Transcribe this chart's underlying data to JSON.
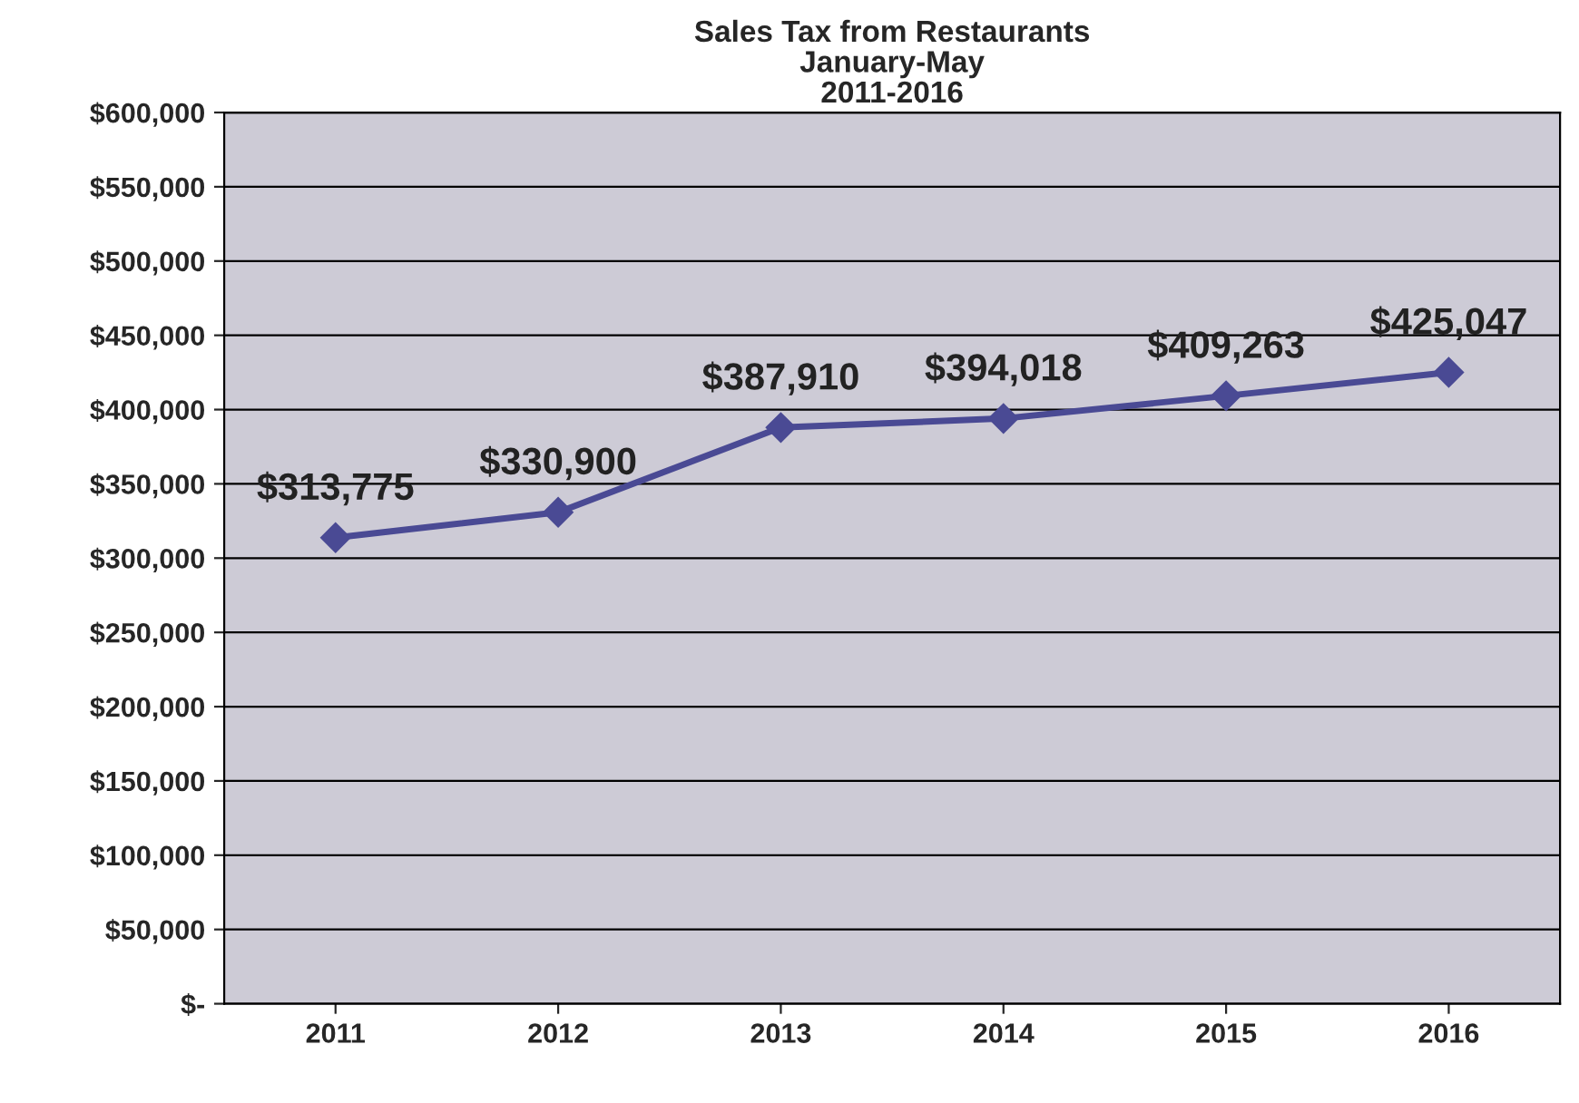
{
  "chart_data": {
    "type": "line",
    "title": "Sales Tax from Restaurants\nJanuary-May\n2011-2016",
    "categories": [
      "2011",
      "2012",
      "2013",
      "2014",
      "2015",
      "2016"
    ],
    "series": [
      {
        "color": "#4a4a94",
        "values": [
          313775,
          330900,
          387910,
          394018,
          409263,
          425047
        ],
        "value_labels": [
          "$313,775",
          "$330,900",
          "$387,910",
          "$394,018",
          "$409,263",
          "$425,047"
        ]
      }
    ],
    "ylim": [
      0,
      600000
    ],
    "yticks": [
      {
        "value": 0,
        "label": "$-"
      },
      {
        "value": 50000,
        "label": "$50,000"
      },
      {
        "value": 100000,
        "label": "$100,000"
      },
      {
        "value": 150000,
        "label": "$150,000"
      },
      {
        "value": 200000,
        "label": "$200,000"
      },
      {
        "value": 250000,
        "label": "$250,000"
      },
      {
        "value": 300000,
        "label": "$300,000"
      },
      {
        "value": 350000,
        "label": "$350,000"
      },
      {
        "value": 400000,
        "label": "$400,000"
      },
      {
        "value": 450000,
        "label": "$450,000"
      },
      {
        "value": 500000,
        "label": "$500,000"
      },
      {
        "value": 550000,
        "label": "$550,000"
      },
      {
        "value": 600000,
        "label": "$600,000"
      }
    ],
    "grid": "y",
    "marker": "diamond",
    "line_style": "solid",
    "legend": false
  }
}
